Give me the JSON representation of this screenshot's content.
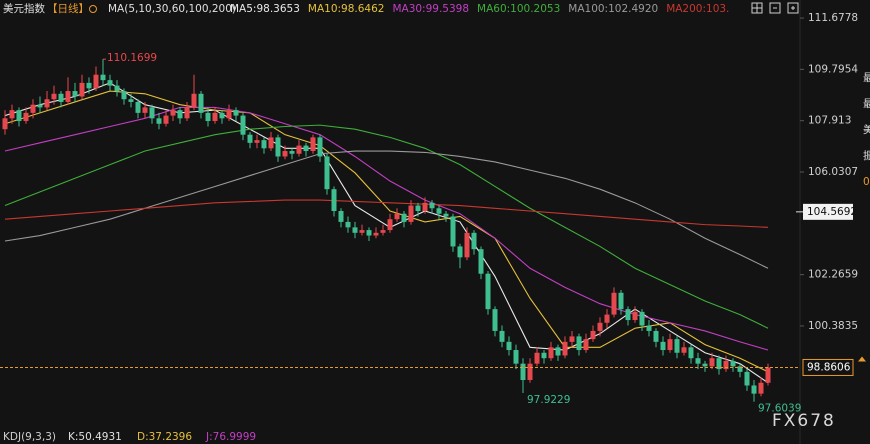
{
  "chart_data": {
    "type": "candlestick",
    "title": "美元指数",
    "period": "【日线】",
    "indicator": "MA(5,10,30,60,100,200)",
    "up_color": "#e5484d",
    "down_color": "#3fbf8f",
    "ylim": [
      96.75,
      112.34
    ],
    "yticks": [
      111.6778,
      109.7954,
      107.913,
      {
        "value": 107.913,
        "label": "107.9130"
      },
      106.0307,
      102.2659,
      100.3835
    ],
    "grid": false,
    "candles": [
      [
        107.6,
        108.3,
        107.4,
        108.0
      ],
      [
        108.0,
        108.5,
        107.8,
        108.3
      ],
      [
        108.3,
        108.4,
        107.7,
        107.9
      ],
      [
        107.9,
        108.4,
        107.8,
        108.2
      ],
      [
        108.2,
        108.7,
        108.0,
        108.5
      ],
      [
        108.5,
        108.8,
        108.2,
        108.4
      ],
      [
        108.4,
        109.0,
        108.3,
        108.7
      ],
      [
        108.7,
        109.2,
        108.5,
        108.9
      ],
      [
        108.9,
        109.0,
        108.4,
        108.6
      ],
      [
        108.6,
        109.5,
        108.5,
        109.0
      ],
      [
        109.0,
        109.3,
        108.6,
        108.8
      ],
      [
        108.8,
        109.6,
        108.7,
        109.3
      ],
      [
        109.3,
        109.5,
        108.9,
        109.1
      ],
      [
        109.1,
        109.9,
        109.0,
        109.6
      ],
      [
        109.6,
        110.1699,
        109.2,
        109.4
      ],
      [
        109.4,
        109.6,
        109.0,
        109.2
      ],
      [
        109.2,
        109.4,
        108.8,
        109.0
      ],
      [
        109.0,
        109.1,
        108.5,
        108.7
      ],
      [
        108.7,
        108.9,
        108.4,
        108.6
      ],
      [
        108.6,
        108.7,
        108.0,
        108.2
      ],
      [
        108.2,
        108.6,
        108.0,
        108.4
      ],
      [
        108.4,
        108.5,
        107.8,
        108.0
      ],
      [
        108.0,
        108.2,
        107.6,
        107.8
      ],
      [
        107.8,
        108.3,
        107.7,
        108.1
      ],
      [
        108.1,
        108.5,
        107.9,
        108.3
      ],
      [
        108.3,
        108.4,
        107.8,
        108.0
      ],
      [
        108.0,
        108.6,
        107.9,
        108.4
      ],
      [
        108.4,
        109.6,
        108.3,
        108.9
      ],
      [
        108.9,
        109.0,
        108.0,
        108.2
      ],
      [
        108.2,
        108.4,
        107.7,
        107.9
      ],
      [
        107.9,
        108.4,
        107.8,
        108.2
      ],
      [
        108.2,
        108.3,
        107.8,
        108.0
      ],
      [
        108.0,
        108.5,
        107.9,
        108.3
      ],
      [
        108.3,
        108.4,
        107.9,
        108.1
      ],
      [
        108.1,
        108.2,
        107.2,
        107.4
      ],
      [
        107.4,
        107.5,
        106.9,
        107.1
      ],
      [
        107.1,
        107.4,
        106.9,
        107.2
      ],
      [
        107.2,
        107.3,
        106.7,
        106.9
      ],
      [
        106.9,
        107.5,
        106.8,
        107.3
      ],
      [
        107.3,
        107.4,
        106.4,
        106.6
      ],
      [
        106.6,
        107.0,
        106.5,
        106.8
      ],
      [
        106.8,
        106.9,
        106.5,
        106.7
      ],
      [
        106.7,
        107.2,
        106.6,
        107.0
      ],
      [
        107.0,
        107.1,
        106.6,
        106.8
      ],
      [
        106.8,
        107.4,
        106.7,
        107.3
      ],
      [
        107.3,
        107.4,
        106.4,
        106.6
      ],
      [
        106.6,
        106.7,
        105.2,
        105.4
      ],
      [
        105.4,
        105.5,
        104.4,
        104.6
      ],
      [
        104.6,
        104.7,
        104.0,
        104.2
      ],
      [
        104.2,
        104.4,
        103.8,
        104.0
      ],
      [
        104.0,
        104.2,
        103.6,
        103.8
      ],
      [
        103.8,
        104.1,
        103.7,
        103.9
      ],
      [
        103.9,
        104.0,
        103.5,
        103.7
      ],
      [
        103.7,
        104.0,
        103.6,
        103.8
      ],
      [
        103.8,
        104.1,
        103.7,
        103.9
      ],
      [
        103.9,
        104.5,
        103.8,
        104.3
      ],
      [
        104.3,
        104.7,
        104.2,
        104.5
      ],
      [
        104.5,
        104.6,
        104.0,
        104.2
      ],
      [
        104.2,
        105.0,
        104.1,
        104.8
      ],
      [
        104.8,
        104.9,
        104.4,
        104.6
      ],
      [
        104.6,
        105.1,
        104.5,
        104.9
      ],
      [
        104.9,
        105.0,
        104.5,
        104.7
      ],
      [
        104.7,
        104.8,
        104.3,
        104.5
      ],
      [
        104.5,
        104.6,
        104.2,
        104.4
      ],
      [
        104.4,
        104.5,
        103.1,
        103.3
      ],
      [
        103.3,
        103.4,
        102.5,
        102.9
      ],
      [
        102.9,
        104.0,
        102.8,
        103.8
      ],
      [
        103.8,
        103.9,
        103.0,
        103.2
      ],
      [
        103.2,
        103.3,
        102.1,
        102.3
      ],
      [
        102.3,
        102.4,
        100.8,
        101.0
      ],
      [
        101.0,
        101.1,
        100.0,
        100.2
      ],
      [
        100.2,
        100.4,
        99.6,
        99.8
      ],
      [
        99.8,
        100.0,
        99.3,
        99.5
      ],
      [
        99.5,
        99.7,
        98.8,
        99.0
      ],
      [
        99.0,
        99.2,
        97.9229,
        98.4
      ],
      [
        98.4,
        99.2,
        98.3,
        99.0
      ],
      [
        99.0,
        99.6,
        98.9,
        99.4
      ],
      [
        99.4,
        99.5,
        99.0,
        99.2
      ],
      [
        99.2,
        99.8,
        99.1,
        99.6
      ],
      [
        99.6,
        99.7,
        99.1,
        99.3
      ],
      [
        99.3,
        100.0,
        99.2,
        99.8
      ],
      [
        99.8,
        100.2,
        99.6,
        100.0
      ],
      [
        100.0,
        100.1,
        99.3,
        99.5
      ],
      [
        99.5,
        100.1,
        99.4,
        99.9
      ],
      [
        99.9,
        100.4,
        99.8,
        100.2
      ],
      [
        100.2,
        100.7,
        100.0,
        100.5
      ],
      [
        100.5,
        101.0,
        100.3,
        100.8
      ],
      [
        100.8,
        101.8,
        100.7,
        101.6
      ],
      [
        101.6,
        101.7,
        100.8,
        101.0
      ],
      [
        101.0,
        101.1,
        100.4,
        100.6
      ],
      [
        100.6,
        101.1,
        100.5,
        100.9
      ],
      [
        100.9,
        101.0,
        100.2,
        100.4
      ],
      [
        100.4,
        100.6,
        100.0,
        100.2
      ],
      [
        100.2,
        100.3,
        99.6,
        99.8
      ],
      [
        99.8,
        100.0,
        99.3,
        99.5
      ],
      [
        99.5,
        100.1,
        99.4,
        99.9
      ],
      [
        99.9,
        100.0,
        99.2,
        99.4
      ],
      [
        99.4,
        99.8,
        99.3,
        99.6
      ],
      [
        99.6,
        99.7,
        99.0,
        99.2
      ],
      [
        99.2,
        99.4,
        98.8,
        99.0
      ],
      [
        99.0,
        99.1,
        98.7,
        98.9
      ],
      [
        98.9,
        99.4,
        98.8,
        99.2
      ],
      [
        99.2,
        99.3,
        98.6,
        98.8
      ],
      [
        98.8,
        99.3,
        98.7,
        99.1
      ],
      [
        99.1,
        99.2,
        98.7,
        98.9
      ],
      [
        98.9,
        99.0,
        98.5,
        98.7
      ],
      [
        98.7,
        98.8,
        98.0,
        98.2
      ],
      [
        98.2,
        98.4,
        97.6039,
        97.9
      ],
      [
        97.9,
        98.5,
        97.8,
        98.3
      ],
      [
        98.3,
        99.0,
        98.2,
        98.8606
      ]
    ],
    "ma_x": [
      0,
      5,
      10,
      15,
      20,
      25,
      30,
      35,
      40,
      45,
      50,
      55,
      60,
      65,
      70,
      75,
      80,
      85,
      90,
      95,
      100,
      105,
      109
    ],
    "series": [
      {
        "name": "MA5:98.3653",
        "color": "#e8e8e8",
        "values": [
          108.1,
          108.5,
          108.8,
          109.3,
          108.5,
          108.2,
          108.3,
          107.6,
          106.9,
          106.9,
          104.8,
          104.0,
          104.6,
          104.2,
          102.2,
          99.6,
          99.5,
          100.1,
          101.0,
          100.2,
          99.4,
          99.0,
          98.3
        ]
      },
      {
        "name": "MA10:98.6462",
        "color": "#e6c13a",
        "values": [
          107.8,
          108.2,
          108.6,
          109.0,
          108.9,
          108.5,
          108.3,
          108.2,
          107.4,
          107.0,
          106.0,
          104.6,
          104.2,
          104.4,
          103.6,
          101.4,
          99.6,
          99.6,
          100.3,
          100.5,
          99.7,
          99.2,
          98.7
        ]
      },
      {
        "name": "MA30:99.5398",
        "color": "#c23fc4",
        "values": [
          106.8,
          107.1,
          107.4,
          107.7,
          108.0,
          108.4,
          108.4,
          108.2,
          107.8,
          107.4,
          106.6,
          105.7,
          105.0,
          104.5,
          103.6,
          102.5,
          101.8,
          101.2,
          100.8,
          100.5,
          100.2,
          99.8,
          99.5
        ]
      },
      {
        "name": "MA60:100.2053",
        "color": "#3fae3a",
        "values": [
          104.8,
          105.3,
          105.8,
          106.3,
          106.8,
          107.1,
          107.4,
          107.6,
          107.7,
          107.75,
          107.6,
          107.3,
          106.9,
          106.3,
          105.5,
          104.7,
          104.0,
          103.3,
          102.5,
          101.9,
          101.3,
          100.8,
          100.3
        ]
      },
      {
        "name": "MA100:102.4920",
        "color": "#9a9a9a",
        "values": [
          103.5,
          103.7,
          104.0,
          104.3,
          104.7,
          105.1,
          105.5,
          105.9,
          106.3,
          106.7,
          106.8,
          106.8,
          106.75,
          106.6,
          106.4,
          106.1,
          105.8,
          105.4,
          104.9,
          104.3,
          103.6,
          103.0,
          102.5
        ]
      },
      {
        "name": "MA200:103.",
        "color": "#c8382f",
        "values": [
          104.3,
          104.4,
          104.5,
          104.6,
          104.7,
          104.8,
          104.9,
          104.95,
          105.0,
          105.0,
          104.95,
          104.9,
          104.85,
          104.8,
          104.7,
          104.6,
          104.5,
          104.4,
          104.3,
          104.2,
          104.1,
          104.05,
          104.0
        ]
      }
    ],
    "level_badge": 104.5692,
    "kdj": {
      "name": "KDJ(9,3,3)",
      "k": "K:50.4931",
      "d": "D:37.2396",
      "j": "J:76.9999"
    },
    "watermark": "FX678",
    "side_texts": [
      "最",
      "最",
      "美",
      "振",
      "0"
    ]
  }
}
